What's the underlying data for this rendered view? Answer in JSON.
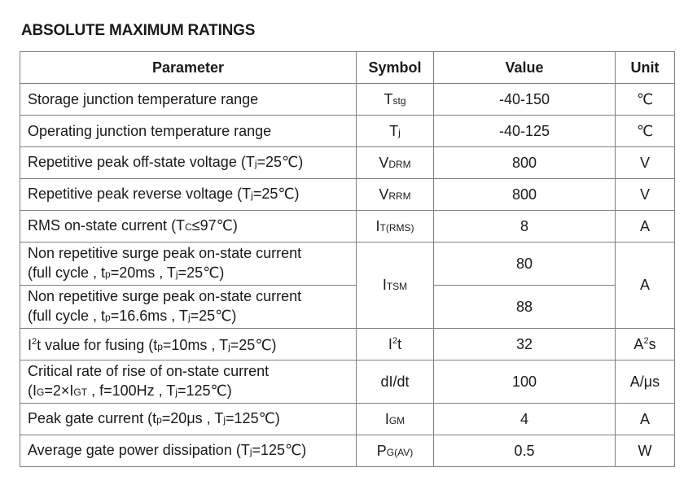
{
  "title": "ABSOLUTE MAXIMUM RATINGS",
  "headers": {
    "parameter": "Parameter",
    "symbol": "Symbol",
    "value": "Value",
    "unit": "Unit"
  },
  "rows": [
    {
      "param": "Storage junction temperature range",
      "sym_main": "T",
      "sym_sub": "stg",
      "value": "-40-150",
      "unit": "℃"
    },
    {
      "param": "Operating junction temperature range",
      "sym_main": "T",
      "sym_sub": "j",
      "value": "-40-125",
      "unit": "℃"
    },
    {
      "param_a": "Repetitive peak off-state voltage (T",
      "param_sub": "j",
      "param_b": "=25℃)",
      "sym_main": "V",
      "sym_sub": "DRM",
      "value": "800",
      "unit": "V"
    },
    {
      "param_a": "Repetitive peak reverse voltage (T",
      "param_sub": "j",
      "param_b": "=25℃)",
      "sym_main": "V",
      "sym_sub": "RRM",
      "value": "800",
      "unit": "V"
    },
    {
      "param_a": "RMS on-state current (T",
      "param_sub": "C",
      "param_b": "≤97℃)",
      "sym_main": "I",
      "sym_sub": "T(RMS)",
      "value": "8",
      "unit": "A"
    },
    {
      "line1": "Non repetitive surge peak on-state current",
      "l2a": "(full cycle , t",
      "l2s1": "p",
      "l2b": "=20ms , T",
      "l2s2": "j",
      "l2c": "=25℃)",
      "sym_main": "I",
      "sym_sub": "TSM",
      "value": "80",
      "unit": "A"
    },
    {
      "line1": "Non repetitive surge peak on-state current",
      "l2a": "(full cycle , t",
      "l2s1": "p",
      "l2b": "=16.6ms , T",
      "l2s2": "j",
      "l2c": "=25℃)",
      "value": "88"
    },
    {
      "pa": "I",
      "psup": "2",
      "pb": "t value for fusing (t",
      "ps1": "p",
      "pc": "=10ms , T",
      "ps2": "j",
      "pd": "=25℃)",
      "sym_main": "I",
      "sym_sup": "2",
      "sym_tail": "t",
      "value": "32",
      "unit_a": "A",
      "unit_sup": "2",
      "unit_b": "s"
    },
    {
      "line1": "Critical rate of rise of on-state current",
      "l2a": "(I",
      "l2s1": "G",
      "l2b": "=2×I",
      "l2s2": "GT",
      "l2c": " , f=100Hz , T",
      "l2s3": "j",
      "l2d": "=125℃)",
      "symbol": "dI/dt",
      "value": "100",
      "unit": "A/μs"
    },
    {
      "pa": "Peak gate current (t",
      "ps1": "p",
      "pb": "=20μs , T",
      "ps2": "j",
      "pc": "=125℃)",
      "sym_main": "I",
      "sym_sub": "GM",
      "value": "4",
      "unit": "A"
    },
    {
      "pa": "Average gate power dissipation (T",
      "ps1": "j",
      "pb": "=125℃)",
      "sym_main": "P",
      "sym_sub": "G(AV)",
      "value": "0.5",
      "unit": "W"
    }
  ]
}
